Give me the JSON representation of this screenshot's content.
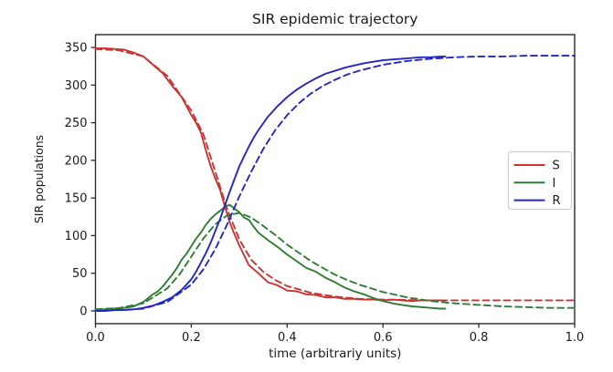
{
  "figure": {
    "title": "SIR epidemic trajectory",
    "background": "#ffffff",
    "spine_color": "#2b2b2b",
    "text_color": "#1a1a1a"
  },
  "chart_data": {
    "type": "line",
    "title": "SIR epidemic trajectory",
    "xlabel": "time (arbitrariy units)",
    "ylabel": "SIR populations",
    "xlim": [
      0.0,
      1.0
    ],
    "ylim": [
      -17,
      367
    ],
    "grid": false,
    "legend_position": "center right",
    "xticks": {
      "values": [
        0.0,
        0.2,
        0.4,
        0.6,
        0.8,
        1.0
      ],
      "labels": [
        "0.0",
        "0.2",
        "0.4",
        "0.6",
        "0.8",
        "1.0"
      ]
    },
    "yticks": {
      "values": [
        0,
        50,
        100,
        150,
        200,
        250,
        300,
        350
      ],
      "labels": [
        "0",
        "50",
        "100",
        "150",
        "200",
        "250",
        "300",
        "350"
      ]
    },
    "legend": [
      {
        "label": "S",
        "color": "#cc3333"
      },
      {
        "label": "I",
        "color": "#2f7d35"
      },
      {
        "label": "R",
        "color": "#2326c9"
      }
    ],
    "series": [
      {
        "id": "S-simulation",
        "legend": "S",
        "color": "#cc3333",
        "style": "solid",
        "points": [
          [
            0,
            349
          ],
          [
            0.02,
            349
          ],
          [
            0.04,
            348
          ],
          [
            0.06,
            347
          ],
          [
            0.08,
            343
          ],
          [
            0.1,
            338
          ],
          [
            0.12,
            327
          ],
          [
            0.14,
            316
          ],
          [
            0.16,
            299
          ],
          [
            0.18,
            284
          ],
          [
            0.2,
            260
          ],
          [
            0.21,
            250
          ],
          [
            0.22,
            237
          ],
          [
            0.23,
            214
          ],
          [
            0.24,
            193
          ],
          [
            0.25,
            176
          ],
          [
            0.26,
            161
          ],
          [
            0.27,
            139
          ],
          [
            0.28,
            118
          ],
          [
            0.29,
            102
          ],
          [
            0.3,
            87
          ],
          [
            0.31,
            74
          ],
          [
            0.32,
            61
          ],
          [
            0.34,
            50
          ],
          [
            0.36,
            38
          ],
          [
            0.38,
            34
          ],
          [
            0.4,
            27
          ],
          [
            0.42,
            26
          ],
          [
            0.44,
            22
          ],
          [
            0.46,
            21
          ],
          [
            0.48,
            18
          ],
          [
            0.5,
            18
          ],
          [
            0.52,
            16
          ],
          [
            0.54,
            16
          ],
          [
            0.56,
            15
          ],
          [
            0.58,
            15
          ],
          [
            0.6,
            14
          ],
          [
            0.62,
            15
          ],
          [
            0.64,
            14
          ],
          [
            0.66,
            13
          ],
          [
            0.68,
            14
          ],
          [
            0.7,
            14
          ],
          [
            0.72,
            14
          ],
          [
            0.73,
            14
          ]
        ]
      },
      {
        "id": "S-model",
        "legend": "S",
        "color": "#cc3333",
        "style": "dashed",
        "points": [
          [
            0,
            348
          ],
          [
            0.05,
            346
          ],
          [
            0.1,
            338
          ],
          [
            0.15,
            312
          ],
          [
            0.2,
            266
          ],
          [
            0.225,
            235
          ],
          [
            0.25,
            185
          ],
          [
            0.275,
            135
          ],
          [
            0.3,
            95
          ],
          [
            0.325,
            68
          ],
          [
            0.35,
            52
          ],
          [
            0.375,
            41
          ],
          [
            0.4,
            33
          ],
          [
            0.45,
            24
          ],
          [
            0.5,
            19
          ],
          [
            0.55,
            16
          ],
          [
            0.6,
            15
          ],
          [
            0.65,
            14.5
          ],
          [
            0.7,
            14
          ],
          [
            0.75,
            14
          ],
          [
            0.8,
            14
          ],
          [
            0.85,
            14
          ],
          [
            0.9,
            14
          ],
          [
            0.95,
            14
          ],
          [
            1,
            14
          ]
        ]
      },
      {
        "id": "I-simulation",
        "legend": "I",
        "color": "#2f7d35",
        "style": "solid",
        "points": [
          [
            0,
            2
          ],
          [
            0.02,
            2
          ],
          [
            0.04,
            3
          ],
          [
            0.06,
            4
          ],
          [
            0.08,
            6
          ],
          [
            0.1,
            12
          ],
          [
            0.12,
            22
          ],
          [
            0.13,
            26
          ],
          [
            0.14,
            32
          ],
          [
            0.15,
            40
          ],
          [
            0.16,
            48
          ],
          [
            0.17,
            57
          ],
          [
            0.18,
            68
          ],
          [
            0.19,
            76
          ],
          [
            0.2,
            86
          ],
          [
            0.21,
            96
          ],
          [
            0.22,
            104
          ],
          [
            0.23,
            114
          ],
          [
            0.24,
            122
          ],
          [
            0.25,
            128
          ],
          [
            0.26,
            133
          ],
          [
            0.27,
            138
          ],
          [
            0.28,
            141
          ],
          [
            0.29,
            136
          ],
          [
            0.3,
            131
          ],
          [
            0.31,
            124
          ],
          [
            0.32,
            121
          ],
          [
            0.33,
            112
          ],
          [
            0.34,
            104
          ],
          [
            0.36,
            94
          ],
          [
            0.38,
            85
          ],
          [
            0.4,
            75
          ],
          [
            0.42,
            66
          ],
          [
            0.44,
            57
          ],
          [
            0.46,
            52
          ],
          [
            0.48,
            44
          ],
          [
            0.5,
            38
          ],
          [
            0.52,
            31
          ],
          [
            0.54,
            26
          ],
          [
            0.56,
            22
          ],
          [
            0.58,
            17
          ],
          [
            0.6,
            13
          ],
          [
            0.62,
            10
          ],
          [
            0.64,
            8
          ],
          [
            0.66,
            6
          ],
          [
            0.68,
            5
          ],
          [
            0.7,
            4
          ],
          [
            0.72,
            3
          ],
          [
            0.73,
            3
          ]
        ]
      },
      {
        "id": "I-model",
        "legend": "I",
        "color": "#2f7d35",
        "style": "dashed",
        "points": [
          [
            0,
            2
          ],
          [
            0.05,
            4
          ],
          [
            0.1,
            10
          ],
          [
            0.15,
            30
          ],
          [
            0.175,
            48
          ],
          [
            0.2,
            72
          ],
          [
            0.225,
            96
          ],
          [
            0.25,
            115
          ],
          [
            0.275,
            127
          ],
          [
            0.3,
            130
          ],
          [
            0.325,
            124
          ],
          [
            0.35,
            113
          ],
          [
            0.375,
            101
          ],
          [
            0.4,
            88
          ],
          [
            0.425,
            77
          ],
          [
            0.45,
            66
          ],
          [
            0.475,
            57
          ],
          [
            0.5,
            48
          ],
          [
            0.525,
            41
          ],
          [
            0.55,
            35
          ],
          [
            0.575,
            30
          ],
          [
            0.6,
            25
          ],
          [
            0.65,
            18
          ],
          [
            0.7,
            13
          ],
          [
            0.75,
            10
          ],
          [
            0.8,
            8
          ],
          [
            0.85,
            6
          ],
          [
            0.9,
            5
          ],
          [
            0.95,
            4
          ],
          [
            1,
            4
          ]
        ]
      },
      {
        "id": "R-simulation",
        "legend": "R",
        "color": "#2326c9",
        "style": "solid",
        "points": [
          [
            0,
            0
          ],
          [
            0.02,
            0
          ],
          [
            0.04,
            1
          ],
          [
            0.06,
            1
          ],
          [
            0.08,
            2
          ],
          [
            0.1,
            4
          ],
          [
            0.12,
            7
          ],
          [
            0.14,
            12
          ],
          [
            0.16,
            18
          ],
          [
            0.18,
            28
          ],
          [
            0.2,
            42
          ],
          [
            0.21,
            52
          ],
          [
            0.22,
            64
          ],
          [
            0.23,
            76
          ],
          [
            0.24,
            90
          ],
          [
            0.25,
            106
          ],
          [
            0.26,
            122
          ],
          [
            0.27,
            140
          ],
          [
            0.28,
            158
          ],
          [
            0.29,
            175
          ],
          [
            0.3,
            192
          ],
          [
            0.31,
            205
          ],
          [
            0.32,
            218
          ],
          [
            0.33,
            230
          ],
          [
            0.34,
            240
          ],
          [
            0.36,
            258
          ],
          [
            0.38,
            272
          ],
          [
            0.4,
            284
          ],
          [
            0.42,
            294
          ],
          [
            0.44,
            302
          ],
          [
            0.46,
            309
          ],
          [
            0.48,
            315
          ],
          [
            0.5,
            319
          ],
          [
            0.52,
            323
          ],
          [
            0.54,
            326
          ],
          [
            0.56,
            329
          ],
          [
            0.58,
            331
          ],
          [
            0.6,
            333
          ],
          [
            0.62,
            334
          ],
          [
            0.64,
            335
          ],
          [
            0.66,
            336
          ],
          [
            0.68,
            337
          ],
          [
            0.7,
            337
          ],
          [
            0.72,
            338
          ],
          [
            0.73,
            338
          ]
        ]
      },
      {
        "id": "R-model",
        "legend": "R",
        "color": "#2326c9",
        "style": "dashed",
        "points": [
          [
            0,
            0
          ],
          [
            0.05,
            1
          ],
          [
            0.1,
            3
          ],
          [
            0.15,
            12
          ],
          [
            0.2,
            35
          ],
          [
            0.225,
            55
          ],
          [
            0.25,
            82
          ],
          [
            0.275,
            115
          ],
          [
            0.3,
            152
          ],
          [
            0.325,
            185
          ],
          [
            0.35,
            215
          ],
          [
            0.375,
            240
          ],
          [
            0.4,
            260
          ],
          [
            0.425,
            276
          ],
          [
            0.45,
            289
          ],
          [
            0.475,
            299
          ],
          [
            0.5,
            307
          ],
          [
            0.525,
            314
          ],
          [
            0.55,
            319
          ],
          [
            0.575,
            323
          ],
          [
            0.6,
            327
          ],
          [
            0.65,
            332
          ],
          [
            0.7,
            335
          ],
          [
            0.75,
            337
          ],
          [
            0.8,
            338
          ],
          [
            0.85,
            338
          ],
          [
            0.9,
            339
          ],
          [
            0.95,
            339
          ],
          [
            1,
            339
          ]
        ]
      }
    ]
  }
}
